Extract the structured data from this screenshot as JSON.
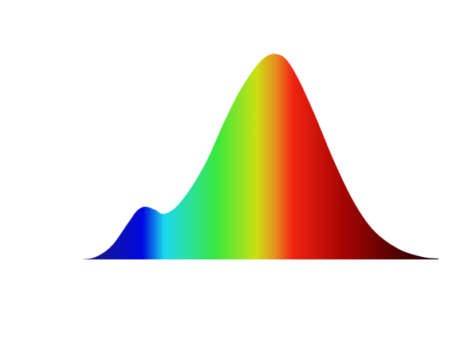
{
  "chart_data": {
    "type": "area",
    "x": [
      0,
      3.8,
      8.3,
      12.8,
      15.4,
      17.7,
      20.6,
      22.8,
      26.2,
      30.6,
      35.1,
      39.6,
      44.1,
      48.5,
      51.9,
      54.8,
      57.5,
      60.9,
      65.4,
      71.0,
      76.5,
      82.1,
      88.8,
      95.5,
      100
    ],
    "values": [
      0,
      1.2,
      6.6,
      17.5,
      23.7,
      25.7,
      24.1,
      22.2,
      25.3,
      35,
      48.6,
      66.1,
      81.7,
      93.4,
      99.2,
      100,
      97,
      87.2,
      70,
      46.7,
      27.2,
      13.6,
      5.1,
      1.2,
      0.4
    ],
    "xlim": [
      0,
      100
    ],
    "ylim": [
      0,
      100
    ],
    "gradient": [
      {
        "at": 0,
        "color": "#1c1c78"
      },
      {
        "at": 17,
        "color": "#0008e0"
      },
      {
        "at": 23,
        "color": "#1ad8f0"
      },
      {
        "at": 38,
        "color": "#3ce83c"
      },
      {
        "at": 49,
        "color": "#cce012"
      },
      {
        "at": 54,
        "color": "#e8921e"
      },
      {
        "at": 59,
        "color": "#f02412"
      },
      {
        "at": 73,
        "color": "#a80402"
      },
      {
        "at": 88,
        "color": "#520202"
      },
      {
        "at": 100,
        "color": "#1e0612"
      }
    ]
  }
}
